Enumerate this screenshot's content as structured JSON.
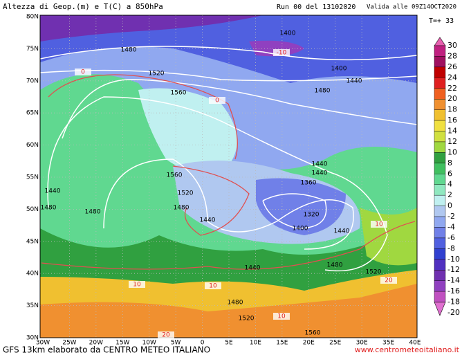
{
  "header": {
    "title": "Altezza di Geop.(m) e T(C) a 850hPa",
    "run": "Run 00 del 13102020",
    "valid": "Valida alle 09Z14OCT2020",
    "forecast": "T=+ 33"
  },
  "lat_labels": [
    "80N",
    "75N",
    "70N",
    "65N",
    "60N",
    "55N",
    "50N",
    "45N",
    "40N",
    "35N",
    "30N"
  ],
  "lon_labels": [
    "30W",
    "25W",
    "20W",
    "15W",
    "10W",
    "5W",
    "0",
    "5E",
    "10E",
    "15E",
    "20E",
    "25E",
    "30E",
    "35E",
    "40E"
  ],
  "colorbar": {
    "labels": [
      30,
      28,
      26,
      24,
      22,
      20,
      18,
      16,
      14,
      12,
      10,
      8,
      6,
      4,
      2,
      0,
      -2,
      -4,
      -6,
      -8,
      -10,
      -12,
      -14,
      -16,
      -18,
      -20
    ],
    "colors": [
      "#e860b0",
      "#c02080",
      "#a01060",
      "#c00000",
      "#e02020",
      "#f06020",
      "#f09030",
      "#f0c030",
      "#f0e040",
      "#d0e040",
      "#a0d840",
      "#30a040",
      "#40c060",
      "#60d890",
      "#90e8c0",
      "#c0f0f0",
      "#b0c8f0",
      "#90a8f0",
      "#7080e8",
      "#5060e0",
      "#3040d0",
      "#5030c0",
      "#7030b0",
      "#9040c0",
      "#c050c0",
      "#e070d0"
    ]
  },
  "contour_labels": [
    "1400",
    "1480",
    "1520",
    "1560",
    "1400",
    "1440",
    "1480",
    "1440",
    "1440",
    "1360",
    "1560",
    "1520",
    "1480",
    "1440",
    "1320",
    "1400",
    "1440",
    "1480",
    "1440",
    "1520",
    "1480",
    "1520",
    "1560",
    "1440",
    "1480",
    "1480",
    "-10",
    "0",
    "0",
    "10",
    "10",
    "10",
    "20",
    "20",
    "10"
  ],
  "footer": {
    "left": "GFS 13km elaborato da CENTRO METEO ITALIANO",
    "right": "www.centrometeoitaliano.it"
  }
}
